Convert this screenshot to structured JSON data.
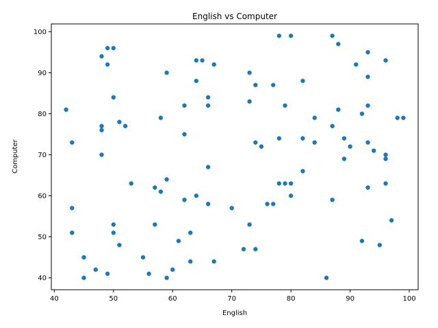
{
  "chart_data": {
    "type": "scatter",
    "title": "English vs Computer",
    "xlabel": "English",
    "ylabel": "Computer",
    "xlim": [
      39.5,
      101.5
    ],
    "ylim": [
      37.1,
      101.9
    ],
    "x_ticks": [
      40,
      50,
      60,
      70,
      80,
      90,
      100
    ],
    "y_ticks": [
      40,
      50,
      60,
      70,
      80,
      90,
      100
    ],
    "grid": false,
    "marker_color": "#1f77b4",
    "points": [
      [
        42,
        81
      ],
      [
        43,
        73
      ],
      [
        43,
        57
      ],
      [
        43,
        51
      ],
      [
        45,
        45
      ],
      [
        45,
        40
      ],
      [
        47,
        42
      ],
      [
        48,
        94
      ],
      [
        48,
        77
      ],
      [
        48,
        76
      ],
      [
        48,
        70
      ],
      [
        49,
        96
      ],
      [
        49,
        92
      ],
      [
        49,
        41
      ],
      [
        50,
        96
      ],
      [
        50,
        84
      ],
      [
        50,
        53
      ],
      [
        50,
        51
      ],
      [
        51,
        78
      ],
      [
        51,
        48
      ],
      [
        52,
        77
      ],
      [
        53,
        63
      ],
      [
        55,
        45
      ],
      [
        56,
        41
      ],
      [
        57,
        62
      ],
      [
        57,
        53
      ],
      [
        58,
        79
      ],
      [
        58,
        61
      ],
      [
        59,
        90
      ],
      [
        59,
        64
      ],
      [
        59,
        40
      ],
      [
        60,
        42
      ],
      [
        61,
        49
      ],
      [
        62,
        82
      ],
      [
        62,
        75
      ],
      [
        62,
        59
      ],
      [
        63,
        51
      ],
      [
        63,
        44
      ],
      [
        64,
        93
      ],
      [
        64,
        88
      ],
      [
        64,
        60
      ],
      [
        65,
        93
      ],
      [
        66,
        84
      ],
      [
        66,
        82
      ],
      [
        66,
        67
      ],
      [
        66,
        58
      ],
      [
        67,
        92
      ],
      [
        67,
        44
      ],
      [
        70,
        57
      ],
      [
        72,
        47
      ],
      [
        73,
        90
      ],
      [
        73,
        83
      ],
      [
        73,
        53
      ],
      [
        74,
        87
      ],
      [
        74,
        73
      ],
      [
        74,
        47
      ],
      [
        75,
        72
      ],
      [
        76,
        58
      ],
      [
        77,
        87
      ],
      [
        77,
        58
      ],
      [
        78,
        99
      ],
      [
        78,
        74
      ],
      [
        78,
        63
      ],
      [
        79,
        82
      ],
      [
        79,
        63
      ],
      [
        80,
        99
      ],
      [
        80,
        63
      ],
      [
        80,
        60
      ],
      [
        82,
        88
      ],
      [
        82,
        74
      ],
      [
        82,
        66
      ],
      [
        84,
        79
      ],
      [
        84,
        73
      ],
      [
        86,
        40
      ],
      [
        87,
        99
      ],
      [
        87,
        77
      ],
      [
        87,
        59
      ],
      [
        88,
        97
      ],
      [
        88,
        81
      ],
      [
        89,
        74
      ],
      [
        89,
        69
      ],
      [
        90,
        72
      ],
      [
        91,
        92
      ],
      [
        92,
        80
      ],
      [
        92,
        49
      ],
      [
        93,
        95
      ],
      [
        93,
        89
      ],
      [
        93,
        82
      ],
      [
        93,
        73
      ],
      [
        93,
        62
      ],
      [
        94,
        71
      ],
      [
        95,
        48
      ],
      [
        96,
        93
      ],
      [
        96,
        70
      ],
      [
        96,
        69
      ],
      [
        96,
        63
      ],
      [
        97,
        54
      ],
      [
        98,
        79
      ],
      [
        99,
        79
      ]
    ]
  }
}
